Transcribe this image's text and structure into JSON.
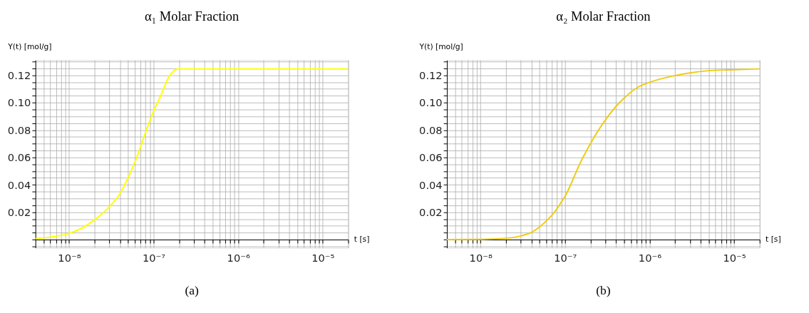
{
  "chart_data": [
    {
      "type": "line",
      "title": "α₁ Molar Fraction",
      "xlabel": "t [s]",
      "ylabel": "Y(t) [mol/g]",
      "log": "x",
      "grid": true,
      "marker": "none",
      "line_style": "solid",
      "annotations": [
        "(a)"
      ],
      "xlim": [
        4e-09,
        2e-05
      ],
      "ylim": [
        -0.006,
        0.131
      ],
      "xticks": [
        {
          "value": 5e-09,
          "label": null
        },
        {
          "value": 6e-09,
          "label": null
        },
        {
          "value": 7e-09,
          "label": null
        },
        {
          "value": 8e-09,
          "label": null
        },
        {
          "value": 9e-09,
          "label": null
        },
        {
          "value": 1e-08,
          "label": "10⁻⁸"
        },
        {
          "value": 2e-08,
          "label": null
        },
        {
          "value": 3e-08,
          "label": null
        },
        {
          "value": 4e-08,
          "label": null
        },
        {
          "value": 5e-08,
          "label": null
        },
        {
          "value": 6e-08,
          "label": null
        },
        {
          "value": 7e-08,
          "label": null
        },
        {
          "value": 8e-08,
          "label": null
        },
        {
          "value": 9e-08,
          "label": null
        },
        {
          "value": 1e-07,
          "label": "10⁻⁷"
        },
        {
          "value": 2e-07,
          "label": null
        },
        {
          "value": 3e-07,
          "label": null
        },
        {
          "value": 4e-07,
          "label": null
        },
        {
          "value": 5e-07,
          "label": null
        },
        {
          "value": 6e-07,
          "label": null
        },
        {
          "value": 7e-07,
          "label": null
        },
        {
          "value": 8e-07,
          "label": null
        },
        {
          "value": 9e-07,
          "label": null
        },
        {
          "value": 1e-06,
          "label": "10⁻⁶"
        },
        {
          "value": 2e-06,
          "label": null
        },
        {
          "value": 3e-06,
          "label": null
        },
        {
          "value": 4e-06,
          "label": null
        },
        {
          "value": 5e-06,
          "label": null
        },
        {
          "value": 6e-06,
          "label": null
        },
        {
          "value": 7e-06,
          "label": null
        },
        {
          "value": 8e-06,
          "label": null
        },
        {
          "value": 9e-06,
          "label": null
        },
        {
          "value": 1e-05,
          "label": "10⁻⁵"
        },
        {
          "value": 2e-05,
          "label": null
        }
      ],
      "yticks": [
        {
          "value": -0.005,
          "label": null
        },
        {
          "value": 0,
          "label": null
        },
        {
          "value": 0.005,
          "label": null
        },
        {
          "value": 0.01,
          "label": null
        },
        {
          "value": 0.015,
          "label": null
        },
        {
          "value": 0.02,
          "label": "0.02"
        },
        {
          "value": 0.025,
          "label": null
        },
        {
          "value": 0.03,
          "label": null
        },
        {
          "value": 0.035,
          "label": null
        },
        {
          "value": 0.04,
          "label": "0.04"
        },
        {
          "value": 0.045,
          "label": null
        },
        {
          "value": 0.05,
          "label": null
        },
        {
          "value": 0.055,
          "label": null
        },
        {
          "value": 0.06,
          "label": "0.06"
        },
        {
          "value": 0.065,
          "label": null
        },
        {
          "value": 0.07,
          "label": null
        },
        {
          "value": 0.075,
          "label": null
        },
        {
          "value": 0.08,
          "label": "0.08"
        },
        {
          "value": 0.085,
          "label": null
        },
        {
          "value": 0.09,
          "label": null
        },
        {
          "value": 0.095,
          "label": null
        },
        {
          "value": 0.1,
          "label": "0.10"
        },
        {
          "value": 0.105,
          "label": null
        },
        {
          "value": 0.11,
          "label": null
        },
        {
          "value": 0.115,
          "label": null
        },
        {
          "value": 0.12,
          "label": "0.12"
        },
        {
          "value": 0.125,
          "label": null
        },
        {
          "value": 0.13,
          "label": null
        }
      ],
      "series": [
        {
          "color": "#ffff00",
          "x": [
            4e-09,
            1e-08,
            2e-08,
            3e-08,
            4e-08,
            5e-08,
            6e-08,
            7e-08,
            8e-08,
            9e-08,
            1e-07,
            1.22e-07,
            1.52e-07,
            1.8e-07,
            2e-07,
            1e-06,
            1e-05,
            2e-05
          ],
          "values": [
            0.0007,
            0.0045,
            0.0144,
            0.024,
            0.0336,
            0.0453,
            0.0565,
            0.0676,
            0.078,
            0.0865,
            0.0937,
            0.1054,
            0.119,
            0.1238,
            0.1245,
            0.1245,
            0.1245,
            0.1245
          ]
        }
      ]
    },
    {
      "type": "line",
      "title": "α₂ Molar Fraction",
      "xlabel": "t [s]",
      "ylabel": "Y(t) [mol/g]",
      "log": "x",
      "grid": true,
      "marker": "none",
      "line_style": "solid",
      "annotations": [
        "(b)"
      ],
      "xlim": [
        4e-09,
        2e-05
      ],
      "ylim": [
        -0.006,
        0.131
      ],
      "xticks": [
        {
          "value": 5e-09,
          "label": null
        },
        {
          "value": 6e-09,
          "label": null
        },
        {
          "value": 7e-09,
          "label": null
        },
        {
          "value": 8e-09,
          "label": null
        },
        {
          "value": 9e-09,
          "label": null
        },
        {
          "value": 1e-08,
          "label": "10⁻⁸"
        },
        {
          "value": 2e-08,
          "label": null
        },
        {
          "value": 3e-08,
          "label": null
        },
        {
          "value": 4e-08,
          "label": null
        },
        {
          "value": 5e-08,
          "label": null
        },
        {
          "value": 6e-08,
          "label": null
        },
        {
          "value": 7e-08,
          "label": null
        },
        {
          "value": 8e-08,
          "label": null
        },
        {
          "value": 9e-08,
          "label": null
        },
        {
          "value": 1e-07,
          "label": "10⁻⁷"
        },
        {
          "value": 2e-07,
          "label": null
        },
        {
          "value": 3e-07,
          "label": null
        },
        {
          "value": 4e-07,
          "label": null
        },
        {
          "value": 5e-07,
          "label": null
        },
        {
          "value": 6e-07,
          "label": null
        },
        {
          "value": 7e-07,
          "label": null
        },
        {
          "value": 8e-07,
          "label": null
        },
        {
          "value": 9e-07,
          "label": null
        },
        {
          "value": 1e-06,
          "label": "10⁻⁶"
        },
        {
          "value": 2e-06,
          "label": null
        },
        {
          "value": 3e-06,
          "label": null
        },
        {
          "value": 4e-06,
          "label": null
        },
        {
          "value": 5e-06,
          "label": null
        },
        {
          "value": 6e-06,
          "label": null
        },
        {
          "value": 7e-06,
          "label": null
        },
        {
          "value": 8e-06,
          "label": null
        },
        {
          "value": 9e-06,
          "label": null
        },
        {
          "value": 1e-05,
          "label": "10⁻⁵"
        },
        {
          "value": 2e-05,
          "label": null
        }
      ],
      "yticks": [
        {
          "value": -0.005,
          "label": null
        },
        {
          "value": 0,
          "label": null
        },
        {
          "value": 0.005,
          "label": null
        },
        {
          "value": 0.01,
          "label": null
        },
        {
          "value": 0.015,
          "label": null
        },
        {
          "value": 0.02,
          "label": "0.02"
        },
        {
          "value": 0.025,
          "label": null
        },
        {
          "value": 0.03,
          "label": null
        },
        {
          "value": 0.035,
          "label": null
        },
        {
          "value": 0.04,
          "label": "0.04"
        },
        {
          "value": 0.045,
          "label": null
        },
        {
          "value": 0.05,
          "label": null
        },
        {
          "value": 0.055,
          "label": null
        },
        {
          "value": 0.06,
          "label": "0.06"
        },
        {
          "value": 0.065,
          "label": null
        },
        {
          "value": 0.07,
          "label": null
        },
        {
          "value": 0.075,
          "label": null
        },
        {
          "value": 0.08,
          "label": "0.08"
        },
        {
          "value": 0.085,
          "label": null
        },
        {
          "value": 0.09,
          "label": null
        },
        {
          "value": 0.095,
          "label": null
        },
        {
          "value": 0.1,
          "label": "0.10"
        },
        {
          "value": 0.105,
          "label": null
        },
        {
          "value": 0.11,
          "label": null
        },
        {
          "value": 0.115,
          "label": null
        },
        {
          "value": 0.12,
          "label": "0.12"
        },
        {
          "value": 0.125,
          "label": null
        },
        {
          "value": 0.13,
          "label": null
        }
      ],
      "series": [
        {
          "color": "#eecc11",
          "x": [
            4e-09,
            1e-08,
            2e-08,
            3e-08,
            4e-08,
            5e-08,
            6e-08,
            7e-08,
            8e-08,
            9e-08,
            1e-07,
            1.2e-07,
            1.5e-07,
            2e-07,
            3e-07,
            4e-07,
            5e-07,
            7e-07,
            1e-06,
            2e-06,
            3e-06,
            5e-06,
            1e-05,
            2e-05
          ],
          "values": [
            0,
            0.0002,
            0.001,
            0.0027,
            0.0053,
            0.0093,
            0.0136,
            0.0179,
            0.0225,
            0.0273,
            0.0316,
            0.0419,
            0.0556,
            0.0702,
            0.0874,
            0.0972,
            0.1033,
            0.1106,
            0.1148,
            0.1197,
            0.1217,
            0.1233,
            0.124,
            0.1246
          ]
        }
      ]
    }
  ]
}
